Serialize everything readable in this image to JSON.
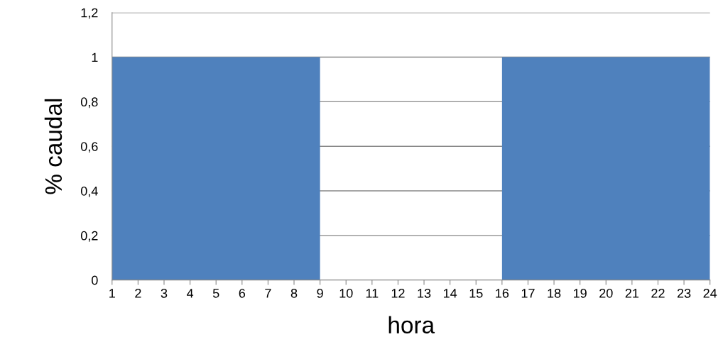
{
  "chart_data": {
    "type": "area",
    "xlabel": "hora",
    "ylabel": "% caudal",
    "x": [
      1,
      9,
      9,
      16,
      16,
      24
    ],
    "series": [
      {
        "color": "#4f81bd",
        "values": [
          1,
          1,
          0,
          0,
          1,
          1
        ]
      }
    ],
    "xlim": [
      1,
      24
    ],
    "xticks": [
      1,
      2,
      3,
      4,
      5,
      6,
      7,
      8,
      9,
      10,
      11,
      12,
      13,
      14,
      15,
      16,
      17,
      18,
      19,
      20,
      21,
      22,
      23,
      24
    ],
    "ylim": [
      0,
      1.2
    ],
    "yticks": [
      0,
      {
        "value": 0.2,
        "label": "0,2"
      },
      {
        "value": 0.4,
        "label": "0,4"
      },
      {
        "value": 0.6,
        "label": "0,6"
      },
      {
        "value": 0.8,
        "label": "0,8"
      },
      1,
      {
        "value": 1.2,
        "label": "1,2"
      }
    ],
    "grid": "y"
  }
}
